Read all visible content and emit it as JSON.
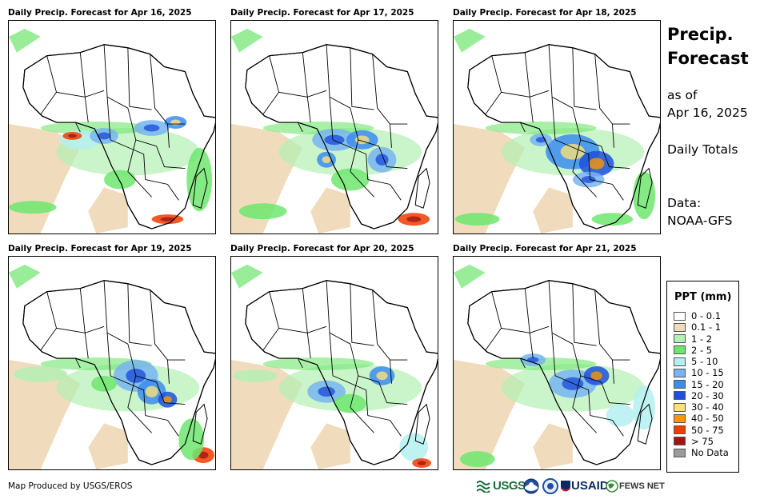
{
  "panels": [
    {
      "title": "Daily Precip. Forecast for Apr 16, 2025"
    },
    {
      "title": "Daily Precip. Forecast for Apr 17, 2025"
    },
    {
      "title": "Daily Precip. Forecast for Apr 18, 2025"
    },
    {
      "title": "Daily Precip. Forecast for Apr 19, 2025"
    },
    {
      "title": "Daily Precip. Forecast for Apr 20, 2025"
    },
    {
      "title": "Daily Precip. Forecast for Apr 21, 2025"
    }
  ],
  "sidebar": {
    "title_line1": "Precip.",
    "title_line2": "Forecast",
    "as_of_label": "as of",
    "as_of_date": "Apr 16, 2025",
    "totals": "Daily Totals",
    "data_label": "Data:",
    "data_source": "NOAA-GFS"
  },
  "legend": {
    "title": "PPT (mm)",
    "items": [
      {
        "label": "0 - 0.1",
        "color": "#ffffff"
      },
      {
        "label": "0.1 - 1",
        "color": "#f0dcbc"
      },
      {
        "label": "1 - 2",
        "color": "#b4f0b4"
      },
      {
        "label": "2 - 5",
        "color": "#6ee66e"
      },
      {
        "label": "5 - 10",
        "color": "#b4f0f0"
      },
      {
        "label": "10 - 15",
        "color": "#78b4f0"
      },
      {
        "label": "15 - 20",
        "color": "#3c8cf0"
      },
      {
        "label": "20 - 30",
        "color": "#1e50dc"
      },
      {
        "label": "30 - 40",
        "color": "#fae178"
      },
      {
        "label": "40 - 50",
        "color": "#fa9600"
      },
      {
        "label": "50 - 75",
        "color": "#f03c00"
      },
      {
        "label": "> 75",
        "color": "#a01414"
      },
      {
        "label": "No Data",
        "color": "#9b9b9b"
      }
    ]
  },
  "footer": {
    "credit": "Map Produced by USGS/EROS",
    "logo_usgs": "USGS",
    "logo_usaid": "USAID",
    "logo_fews": "FEWS NET"
  }
}
